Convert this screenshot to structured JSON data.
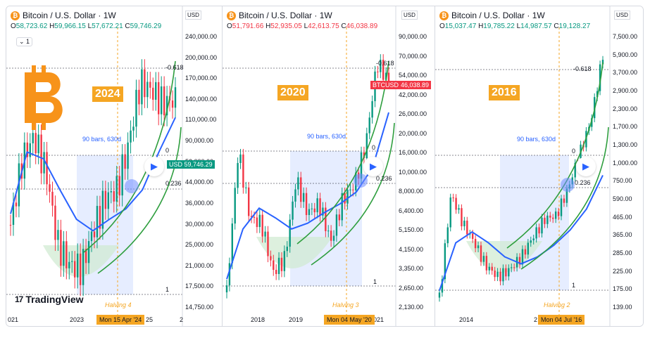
{
  "chart_data": [
    {
      "type": "line",
      "title": "Bitcoin / U.S. Dollar · 1W",
      "ohlc": {
        "open": "58,723.62",
        "high": "59,966.15",
        "low": "57,672.21",
        "close": "59,746.29"
      },
      "ohlc_color": "green",
      "cycle_label": "2024",
      "halving_label": "Halving 4",
      "date_label": "Mon 15 Apr '24",
      "bars_label": "90 bars, 630d",
      "fib_levels": [
        "-0.618",
        "0",
        "0.236",
        "1"
      ],
      "price_tag": "59,746.29",
      "price_tag_prefix": "USD",
      "y_unit": "USD",
      "y_scale": "log",
      "y_ticks": [
        "240,000.00",
        "200,000.00",
        "170,000.00",
        "140,000.00",
        "110,000.00",
        "90,000.00",
        "52,000.00",
        "44,000.00",
        "36,000.00",
        "30,000.00",
        "25,000.00",
        "21,000.00",
        "17,500.00",
        "14,750.00"
      ],
      "x_ticks": [
        "021",
        "2023",
        "25",
        "2"
      ],
      "legend_toggle": "1",
      "series": [
        {
          "values": [
            23000,
            38000,
            45000,
            35000,
            20000,
            17000,
            16500,
            22000,
            28000,
            30000,
            42000,
            68000,
            64000,
            58000,
            59746
          ]
        },
        {
          "values": [
            25000,
            40000,
            38000,
            30000,
            24000,
            22000,
            24000,
            26000,
            30000,
            40000,
            52000
          ]
        }
      ]
    },
    {
      "type": "line",
      "title": "Bitcoin / U.S. Dollar · 1W",
      "ohlc": {
        "open": "51,791.66",
        "high": "52,935.05",
        "low": "42,613.75",
        "close": "46,038.89"
      },
      "ohlc_color": "red",
      "cycle_label": "2020",
      "halving_label": "Halving 3",
      "date_label": "Mon 04 May '20",
      "bars_label": "90 bars, 630d",
      "fib_levels": [
        "-0.618",
        "0",
        "0.236",
        "1"
      ],
      "price_tag": "46,038.89",
      "price_tag_prefix": "BTCUSD",
      "y_unit": "USD",
      "y_scale": "log",
      "y_ticks": [
        "90,000.00",
        "70,000.00",
        "54,000.00",
        "42,000.00",
        "26,000.00",
        "20,000.00",
        "16,000.00",
        "10,000.00",
        "8,000.00",
        "6,400.00",
        "5,150.00",
        "4,150.00",
        "3,350.00",
        "2,650.00",
        "2,130.00"
      ],
      "x_ticks": [
        "2018",
        "2019",
        "021"
      ],
      "series": [
        {
          "values": [
            2500,
            18000,
            7000,
            6500,
            3300,
            4000,
            12000,
            7500,
            8500,
            5000,
            9000,
            11000,
            19000,
            60000,
            46038
          ]
        },
        {
          "values": [
            3000,
            6000,
            8000,
            7000,
            6000,
            6500,
            7500,
            8500,
            10000,
            14000,
            30000
          ]
        }
      ]
    },
    {
      "type": "line",
      "title": "Bitcoin / U.S. Dollar · 1W",
      "ohlc": {
        "open": "15,037.47",
        "high": "19,785.22",
        "low": "14,987.57",
        "close": "19,128.27"
      },
      "ohlc_color": "green",
      "cycle_label": "2016",
      "halving_label": "Halving 2",
      "date_label": "Mon 04 Jul '16",
      "bars_label": "90 bars, 630d",
      "fib_levels": [
        "-0.618",
        "0",
        "0.236",
        "1"
      ],
      "y_unit": "USD",
      "y_scale": "log",
      "y_ticks": [
        "7,500.00",
        "5,900.00",
        "3,700.00",
        "2,900.00",
        "2,300.00",
        "1,700.00",
        "1,300.00",
        "1,000.00",
        "750.00",
        "590.00",
        "465.00",
        "365.00",
        "285.00",
        "225.00",
        "175.00",
        "139.00"
      ],
      "x_ticks": [
        "2014",
        "2",
        "b"
      ],
      "series": [
        {
          "values": [
            130,
            1100,
            600,
            400,
            250,
            200,
            230,
            300,
            450,
            650,
            700,
            1200,
            2500,
            5000,
            19128
          ]
        },
        {
          "values": [
            150,
            400,
            500,
            400,
            300,
            260,
            300,
            380,
            520,
            800,
            1600
          ]
        }
      ]
    }
  ],
  "branding": {
    "logo_text": "TradingView",
    "logo_mark": "17"
  },
  "colors": {
    "bull": "#089981",
    "bear": "#f23645",
    "ma": "#2962ff",
    "arc": "#2e9e3e",
    "accent": "#f5a623",
    "btc": "#f7931a"
  },
  "icons": [
    "bitcoin-logo-icon",
    "play-icon",
    "minus-icon",
    "tradingview-logo-icon"
  ]
}
